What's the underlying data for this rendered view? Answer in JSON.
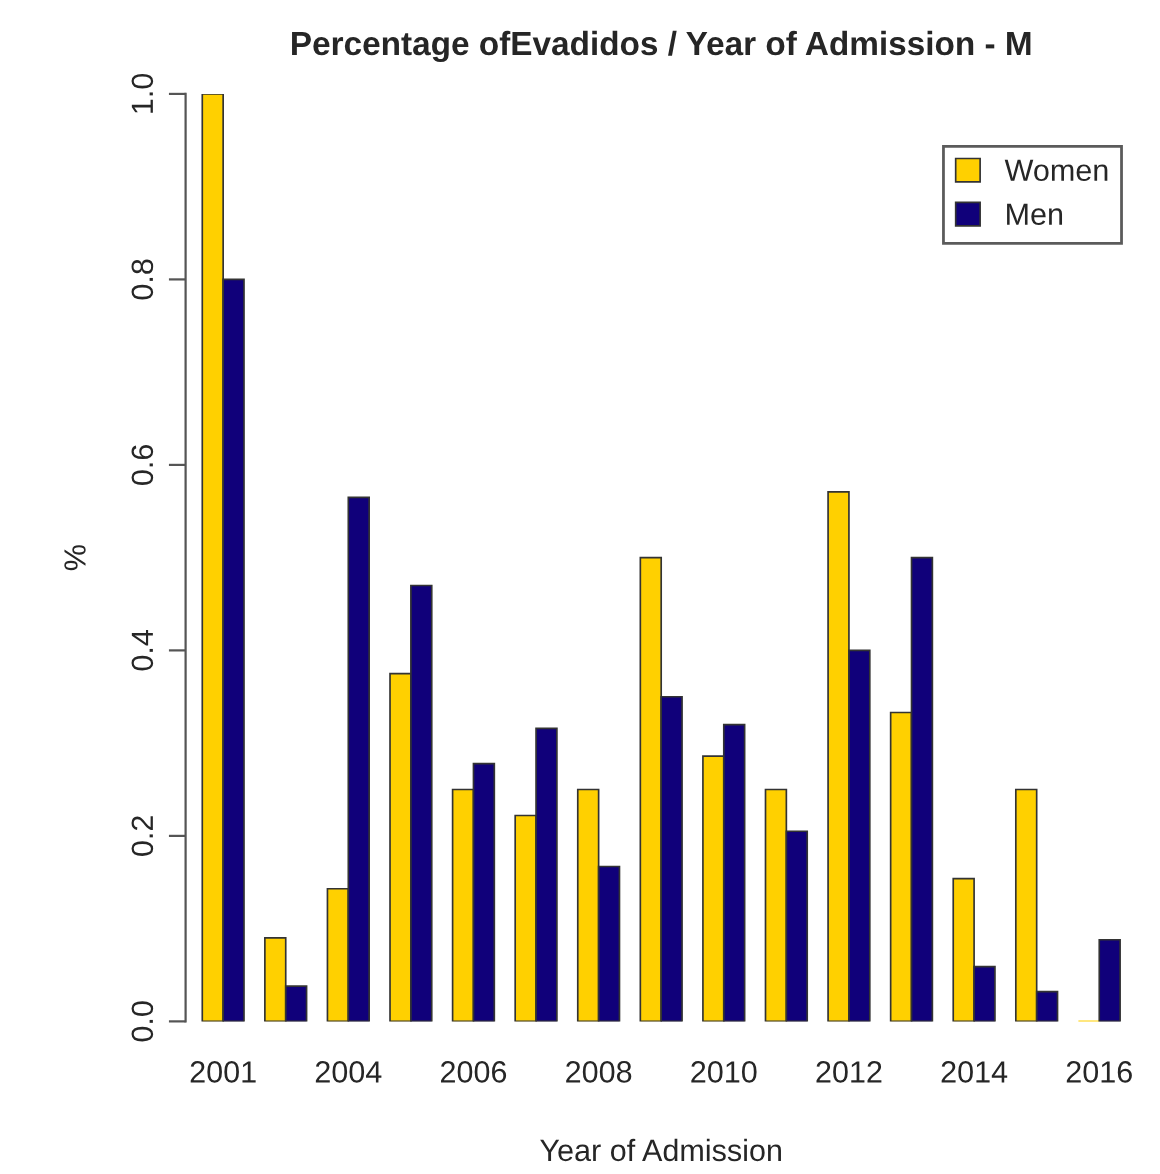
{
  "chart_data": {
    "type": "bar",
    "title": "Percentage ofEvadidos / Year of Admission - M",
    "xlabel": "Year of Admission",
    "ylabel": "%",
    "categories": [
      "2001",
      null,
      "2004",
      null,
      "2006",
      null,
      "2008",
      null,
      "2010",
      null,
      "2012",
      null,
      "2014",
      null,
      "2016"
    ],
    "series": [
      {
        "name": "Women",
        "color": "#ffd000",
        "values": [
          1.0,
          0.09,
          0.143,
          0.375,
          0.25,
          0.222,
          0.25,
          0.5,
          0.286,
          0.25,
          0.571,
          0.333,
          0.154,
          0.25,
          0.0
        ]
      },
      {
        "name": "Men",
        "color": "#10007a",
        "values": [
          0.8,
          0.038,
          0.565,
          0.47,
          0.278,
          0.316,
          0.167,
          0.35,
          0.32,
          0.205,
          0.4,
          0.5,
          0.059,
          0.032,
          0.088
        ]
      }
    ],
    "ylim": [
      0,
      1
    ],
    "yticks": [
      {
        "value": 0,
        "label": "0.0"
      },
      0.2,
      0.4,
      0.6,
      0.8,
      {
        "value": 1,
        "label": "1.0"
      }
    ],
    "grid": false,
    "legend": "top right"
  }
}
